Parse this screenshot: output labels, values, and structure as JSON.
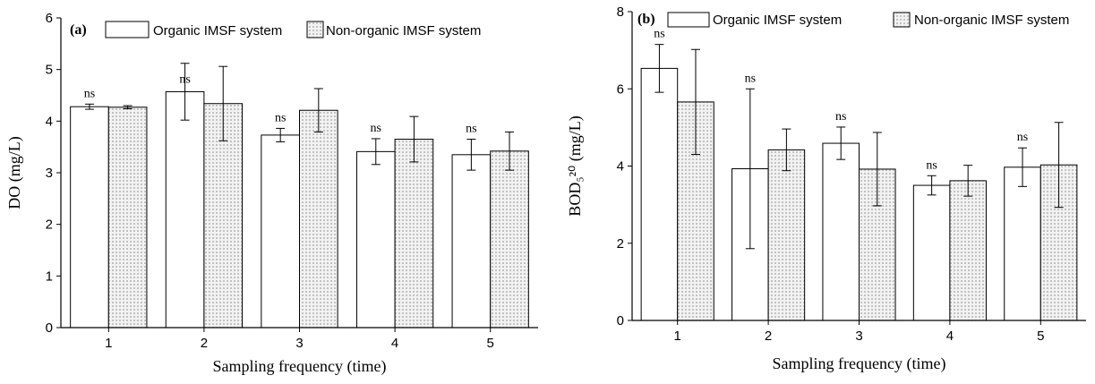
{
  "chart_data": [
    {
      "type": "bar",
      "panel_label": "(a)",
      "categories": [
        "1",
        "2",
        "3",
        "4",
        "5"
      ],
      "series": [
        {
          "name": "Organic IMSF system",
          "values": [
            4.28,
            4.57,
            3.73,
            3.41,
            3.35
          ],
          "errors": [
            0.05,
            0.55,
            0.13,
            0.25,
            0.3
          ],
          "fill": "plain"
        },
        {
          "name": "Non-organic IMSF system",
          "values": [
            4.27,
            4.34,
            4.21,
            3.65,
            3.42
          ],
          "errors": [
            0.03,
            0.72,
            0.42,
            0.44,
            0.37
          ],
          "fill": "dotted"
        }
      ],
      "annotations": [
        "ns",
        "ns",
        "ns",
        "ns",
        "ns"
      ],
      "xlabel": "Sampling frequency (time)",
      "ylabel": "DO (mg/L)",
      "ylim": [
        0,
        6
      ],
      "yticks": [
        "0",
        "1",
        "2",
        "3",
        "4",
        "5",
        "6"
      ],
      "grid": false,
      "legend_position": "top"
    },
    {
      "type": "bar",
      "panel_label": "(b)",
      "categories": [
        "1",
        "2",
        "3",
        "4",
        "5"
      ],
      "series": [
        {
          "name": "Organic IMSF system",
          "values": [
            6.53,
            3.93,
            4.59,
            3.5,
            3.97
          ],
          "errors": [
            0.62,
            2.07,
            0.42,
            0.25,
            0.5
          ],
          "fill": "plain"
        },
        {
          "name": "Non-organic IMSF system",
          "values": [
            5.66,
            4.42,
            3.92,
            3.62,
            4.03
          ],
          "errors": [
            1.36,
            0.54,
            0.95,
            0.4,
            1.1
          ],
          "fill": "dotted"
        }
      ],
      "annotations": [
        "ns",
        "ns",
        "ns",
        "ns",
        "ns"
      ],
      "xlabel": "Sampling frequency (time)",
      "ylabel": "BOD₅²⁰ (mg/L)",
      "ylim": [
        0,
        8
      ],
      "yticks": [
        "0",
        "2",
        "4",
        "6",
        "8"
      ],
      "grid": false,
      "legend_position": "top"
    }
  ],
  "colors": {
    "axis": "#000000",
    "bar_plain_fill": "#ffffff",
    "bar_dotted_fill": "#f2f2f2",
    "dot": "#c2c2c2"
  }
}
